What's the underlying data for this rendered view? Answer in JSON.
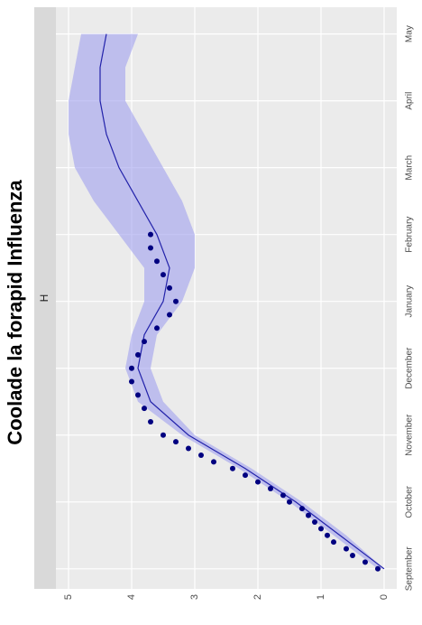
{
  "chart_data": {
    "type": "scatter",
    "title": "Coolade la forapid Influenza",
    "facet": "H",
    "xlim": [
      -0.3,
      8.4
    ],
    "xticks": [
      {
        "value": 0,
        "label": "September"
      },
      {
        "value": 1,
        "label": "October"
      },
      {
        "value": 2,
        "label": "November"
      },
      {
        "value": 3,
        "label": "December"
      },
      {
        "value": 4,
        "label": "January"
      },
      {
        "value": 5,
        "label": "February"
      },
      {
        "value": 6,
        "label": "March"
      },
      {
        "value": 7,
        "label": "April"
      },
      {
        "value": 8,
        "label": "May"
      }
    ],
    "ylim": [
      -0.2,
      5.2
    ],
    "yticks": [
      0,
      1,
      2,
      3,
      4,
      5
    ],
    "grid": true,
    "points": {
      "color": "#000080",
      "x": [
        0.0,
        0.1,
        0.2,
        0.3,
        0.4,
        0.5,
        0.6,
        0.7,
        0.8,
        0.9,
        1.0,
        1.1,
        1.2,
        1.3,
        1.4,
        1.5,
        1.6,
        1.7,
        1.8,
        1.9,
        2.0,
        2.2,
        2.4,
        2.6,
        2.8,
        3.0,
        3.2,
        3.4,
        3.6,
        3.8,
        4.0,
        4.2,
        4.4,
        4.6,
        4.8,
        5.0
      ],
      "values": [
        0.1,
        0.3,
        0.5,
        0.6,
        0.8,
        0.9,
        1.0,
        1.1,
        1.2,
        1.3,
        1.5,
        1.6,
        1.8,
        2.0,
        2.2,
        2.4,
        2.7,
        2.9,
        3.1,
        3.3,
        3.5,
        3.7,
        3.8,
        3.9,
        4.0,
        4.0,
        3.9,
        3.8,
        3.6,
        3.4,
        3.3,
        3.4,
        3.5,
        3.6,
        3.7,
        3.7
      ]
    },
    "fit": {
      "color": "#2222aa",
      "band_color": "#a0a0ee",
      "x": [
        0,
        0.5,
        1,
        1.5,
        2,
        2.5,
        3,
        3.5,
        4,
        4.5,
        5,
        5.5,
        6,
        6.5,
        7,
        7.5,
        8
      ],
      "values": [
        0.0,
        0.7,
        1.4,
        2.2,
        3.1,
        3.7,
        3.9,
        3.8,
        3.5,
        3.4,
        3.6,
        3.9,
        4.2,
        4.4,
        4.5,
        4.5,
        4.4
      ],
      "lower": [
        0.0,
        0.6,
        1.3,
        2.1,
        3.0,
        3.5,
        3.7,
        3.6,
        3.2,
        3.0,
        3.0,
        3.2,
        3.5,
        3.8,
        4.1,
        4.1,
        3.9
      ],
      "upper": [
        0.1,
        0.8,
        1.5,
        2.3,
        3.2,
        3.9,
        4.1,
        4.0,
        3.8,
        3.8,
        4.2,
        4.6,
        4.9,
        5.0,
        5.0,
        4.9,
        4.8
      ]
    }
  }
}
